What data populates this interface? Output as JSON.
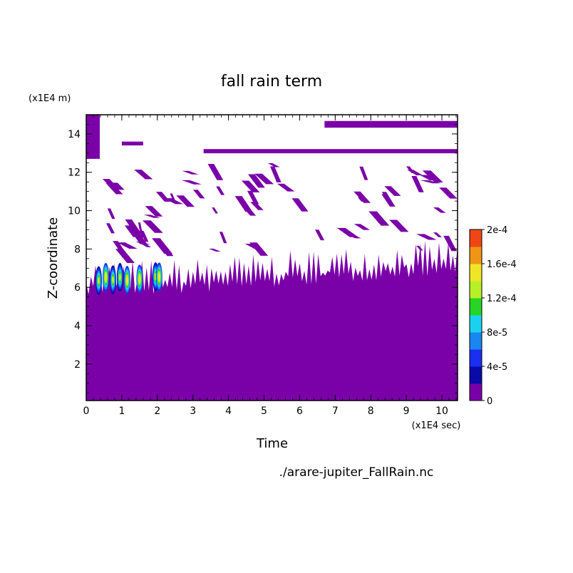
{
  "chart_data": {
    "type": "heatmap",
    "title": "fall rain term",
    "xlabel": "Time",
    "ylabel": "Z-coordinate",
    "x_unit": "(x1E4 sec)",
    "y_unit": "(x1E4 m)",
    "xlim": [
      0,
      10.44
    ],
    "ylim": [
      0.1,
      15.0
    ],
    "x_ticks": [
      0,
      1,
      2,
      3,
      4,
      5,
      6,
      7,
      8,
      9,
      10
    ],
    "x_tick_labels": [
      "0",
      "1",
      "2",
      "3",
      "4",
      "5",
      "6",
      "7",
      "8",
      "9",
      "10"
    ],
    "y_ticks": [
      2,
      4,
      6,
      8,
      10,
      12,
      14
    ],
    "y_tick_labels": [
      "2",
      "4",
      "6",
      "8",
      "10",
      "12",
      "14"
    ],
    "grid": false,
    "source_file": "./arare-jupiter_FallRain.nc",
    "colorbar": {
      "levels": [
        0,
        2e-05,
        4e-05,
        6e-05,
        8e-05,
        0.0001,
        0.00012,
        0.00014,
        0.00016,
        0.00018,
        0.0002
      ],
      "tick_labels": [
        "0",
        "4e-5",
        "8e-5",
        "1.2e-4",
        "1.6e-4",
        "2e-4"
      ],
      "colors": [
        "#7a00a8",
        "#0a0aa8",
        "#1a2ff0",
        "#1a86f0",
        "#1ad2f0",
        "#26d626",
        "#b6f026",
        "#f0e626",
        "#f09616",
        "#f04616"
      ]
    },
    "field_description_levels": {
      "base_layer_top_z": 6.2,
      "base_layer_top_z_late": 7.2,
      "upper_bands_z": [
        13.1,
        13.5,
        14.5
      ],
      "high_values_region": {
        "x_range": [
          0.2,
          2.2
        ],
        "z_range": [
          5.5,
          7.5
        ]
      }
    }
  },
  "colors": {
    "background": "#ffffff",
    "zero_level": "#7a00a8"
  }
}
